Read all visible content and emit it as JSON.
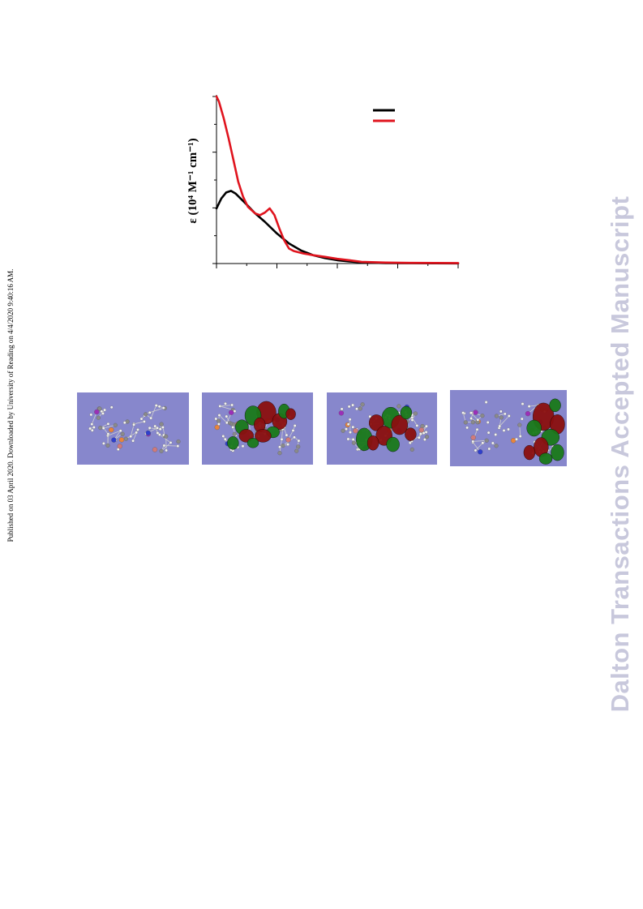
{
  "side_note": "Published on 03 April 2020. Downloaded by University of Reading on 4/4/2020 9:40:16 AM.",
  "watermark": "Dalton Transactions Accepted Manuscript",
  "chart_data": {
    "type": "line",
    "ylabel": "ε (10⁴ M⁻¹ cm⁻¹)",
    "xlabel": "",
    "x_tick_count": 9,
    "y_major_tick_count": 4,
    "series": [
      {
        "color": "#000000",
        "points": [
          [
            0,
            0.33
          ],
          [
            0.02,
            0.39
          ],
          [
            0.04,
            0.425
          ],
          [
            0.06,
            0.435
          ],
          [
            0.08,
            0.418
          ],
          [
            0.12,
            0.36
          ],
          [
            0.16,
            0.3
          ],
          [
            0.2,
            0.25
          ],
          [
            0.25,
            0.18
          ],
          [
            0.3,
            0.12
          ],
          [
            0.35,
            0.078
          ],
          [
            0.4,
            0.05
          ],
          [
            0.45,
            0.032
          ],
          [
            0.5,
            0.02
          ],
          [
            0.55,
            0.012
          ],
          [
            0.6,
            0.007
          ],
          [
            0.7,
            0.003
          ],
          [
            0.8,
            0.002
          ],
          [
            1.0,
            0.001
          ]
        ]
      },
      {
        "color": "#e0141e",
        "points": [
          [
            0,
            1.0
          ],
          [
            0.01,
            0.97
          ],
          [
            0.03,
            0.87
          ],
          [
            0.05,
            0.75
          ],
          [
            0.07,
            0.62
          ],
          [
            0.09,
            0.49
          ],
          [
            0.11,
            0.4
          ],
          [
            0.13,
            0.34
          ],
          [
            0.16,
            0.3
          ],
          [
            0.18,
            0.29
          ],
          [
            0.2,
            0.305
          ],
          [
            0.22,
            0.33
          ],
          [
            0.24,
            0.29
          ],
          [
            0.26,
            0.21
          ],
          [
            0.28,
            0.14
          ],
          [
            0.3,
            0.09
          ],
          [
            0.32,
            0.075
          ],
          [
            0.36,
            0.06
          ],
          [
            0.4,
            0.05
          ],
          [
            0.45,
            0.04
          ],
          [
            0.5,
            0.028
          ],
          [
            0.55,
            0.02
          ],
          [
            0.6,
            0.01
          ],
          [
            0.7,
            0.006
          ],
          [
            0.8,
            0.004
          ],
          [
            1.0,
            0.003
          ]
        ]
      }
    ]
  },
  "mo_panels": [
    {
      "lobes": []
    },
    {
      "lobes": [
        [
          0.58,
          0.28,
          12,
          14,
          "#8b0f0f"
        ],
        [
          0.46,
          0.32,
          10,
          12,
          "#1a7a1a"
        ],
        [
          0.7,
          0.4,
          9,
          10,
          "#8b0f0f"
        ],
        [
          0.36,
          0.48,
          8,
          9,
          "#1a7a1a"
        ],
        [
          0.52,
          0.45,
          7,
          9,
          "#8b0f0f"
        ],
        [
          0.64,
          0.55,
          8,
          7,
          "#1a7a1a"
        ],
        [
          0.4,
          0.6,
          9,
          8,
          "#8b0f0f"
        ],
        [
          0.28,
          0.7,
          7,
          8,
          "#1a7a1a"
        ],
        [
          0.74,
          0.26,
          7,
          9,
          "#1a7a1a"
        ],
        [
          0.8,
          0.3,
          6,
          7,
          "#8b0f0f"
        ],
        [
          0.55,
          0.6,
          10,
          8,
          "#8b0f0f"
        ],
        [
          0.46,
          0.7,
          7,
          6,
          "#1a7a1a"
        ]
      ]
    },
    {
      "lobes": [
        [
          0.58,
          0.35,
          11,
          13,
          "#1a7a1a"
        ],
        [
          0.45,
          0.42,
          9,
          10,
          "#8b0f0f"
        ],
        [
          0.66,
          0.45,
          10,
          12,
          "#8b0f0f"
        ],
        [
          0.34,
          0.65,
          10,
          14,
          "#1a7a1a"
        ],
        [
          0.52,
          0.6,
          10,
          12,
          "#8b0f0f"
        ],
        [
          0.42,
          0.7,
          7,
          9,
          "#8b0f0f"
        ],
        [
          0.72,
          0.28,
          7,
          8,
          "#1a7a1a"
        ],
        [
          0.6,
          0.72,
          8,
          9,
          "#1a7a1a"
        ],
        [
          0.76,
          0.58,
          7,
          8,
          "#8b0f0f"
        ]
      ]
    },
    {
      "lobes": [
        [
          0.8,
          0.35,
          13,
          17,
          "#8b0f0f"
        ],
        [
          0.92,
          0.45,
          9,
          12,
          "#8b0f0f"
        ],
        [
          0.9,
          0.2,
          7,
          8,
          "#1a7a1a"
        ],
        [
          0.72,
          0.5,
          9,
          10,
          "#1a7a1a"
        ],
        [
          0.86,
          0.62,
          11,
          10,
          "#1a7a1a"
        ],
        [
          0.78,
          0.75,
          9,
          12,
          "#8b0f0f"
        ],
        [
          0.92,
          0.82,
          8,
          10,
          "#1a7a1a"
        ],
        [
          0.68,
          0.82,
          7,
          9,
          "#8b0f0f"
        ],
        [
          0.82,
          0.9,
          8,
          7,
          "#1a7a1a"
        ]
      ]
    }
  ]
}
